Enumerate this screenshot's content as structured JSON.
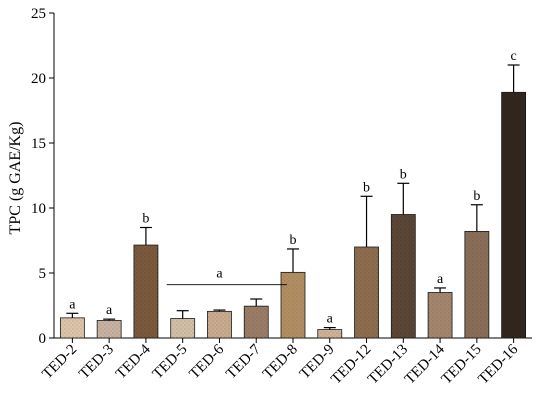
{
  "chart_data": {
    "type": "bar",
    "title": "",
    "xlabel": "",
    "ylabel": "TPC (g GAE/Kg)",
    "ylim": [
      0,
      25
    ],
    "yticks": [
      0,
      5,
      10,
      15,
      20,
      25
    ],
    "grid": false,
    "categories": [
      "TED-2",
      "TED-3",
      "TED-4",
      "TED-5",
      "TED-6",
      "TED-7",
      "TED-8",
      "TED-9",
      "TED-12",
      "TED-13",
      "TED-14",
      "TED-15",
      "TED-16"
    ],
    "values": [
      1.55,
      1.35,
      7.15,
      1.5,
      2.05,
      2.45,
      5.05,
      0.65,
      7.0,
      9.5,
      3.5,
      8.2,
      18.9
    ],
    "errors": [
      0.35,
      0.1,
      1.35,
      0.6,
      0.1,
      0.55,
      1.8,
      0.15,
      3.9,
      2.4,
      0.35,
      2.05,
      2.1
    ],
    "letters": [
      "a",
      "a",
      "b",
      "",
      "",
      "",
      "b",
      "a",
      "b",
      "b",
      "a",
      "b",
      "c"
    ],
    "group_annotation": {
      "label": "a",
      "from": "TED-5",
      "to": "TED-7",
      "y": 4.1
    },
    "colors": [
      "#dcc4aa",
      "#c8b2a0",
      "#7b5a3d",
      "#d3bea7",
      "#c9ab8e",
      "#9b7d67",
      "#b38e62",
      "#cfb397",
      "#8e6d4f",
      "#5a4636",
      "#a4866f",
      "#8a6f58",
      "#32271e"
    ]
  }
}
